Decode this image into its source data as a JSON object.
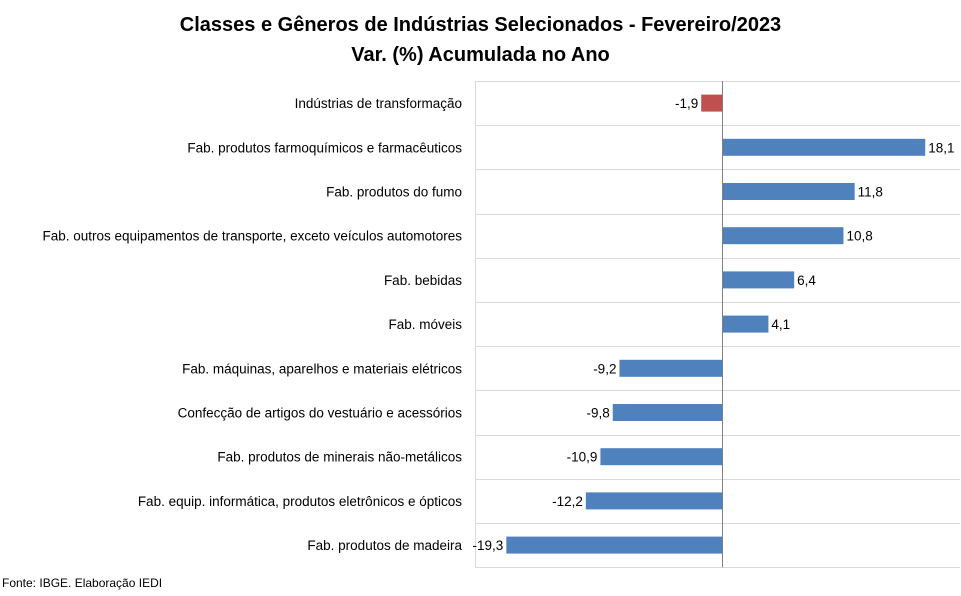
{
  "colors": {
    "positive": "#4f81bd",
    "negative_highlight": "#c0504d",
    "grid": "#d9d9d9",
    "axis": "#808080"
  },
  "chart_data": {
    "type": "bar",
    "orientation": "horizontal",
    "title": "Classes e Gêneros de Indústrias Selecionados - Fevereiro/2023",
    "subtitle": "Var. (%) Acumulada no Ano",
    "xlabel": "",
    "ylabel": "",
    "xlim": [
      -21,
      21
    ],
    "grid": true,
    "legend": "none",
    "categories": [
      "Indústrias de transformação",
      "Fab. produtos farmoquímicos e farmacêuticos",
      "Fab. produtos do fumo",
      "Fab. outros equipamentos de transporte, exceto veículos automotores",
      "Fab. bebidas",
      "Fab. móveis",
      "Fab. máquinas, aparelhos e materiais elétricos",
      "Confecção de artigos do vestuário e acessórios",
      "Fab. produtos de minerais não-metálicos",
      "Fab. equip. informática, produtos eletrônicos e ópticos",
      "Fab. produtos de madeira"
    ],
    "values": [
      -1.9,
      18.1,
      11.8,
      10.8,
      6.4,
      4.1,
      -9.2,
      -9.8,
      -10.9,
      -12.2,
      -19.3
    ],
    "value_labels": [
      "-1,9",
      "18,1",
      "11,8",
      "10,8",
      "6,4",
      "4,1",
      "-9,2",
      "-9,8",
      "-10,9",
      "-12,2",
      "-19,3"
    ],
    "highlight_index": 0
  },
  "source": "Fonte: IBGE. Elaboração IEDI"
}
